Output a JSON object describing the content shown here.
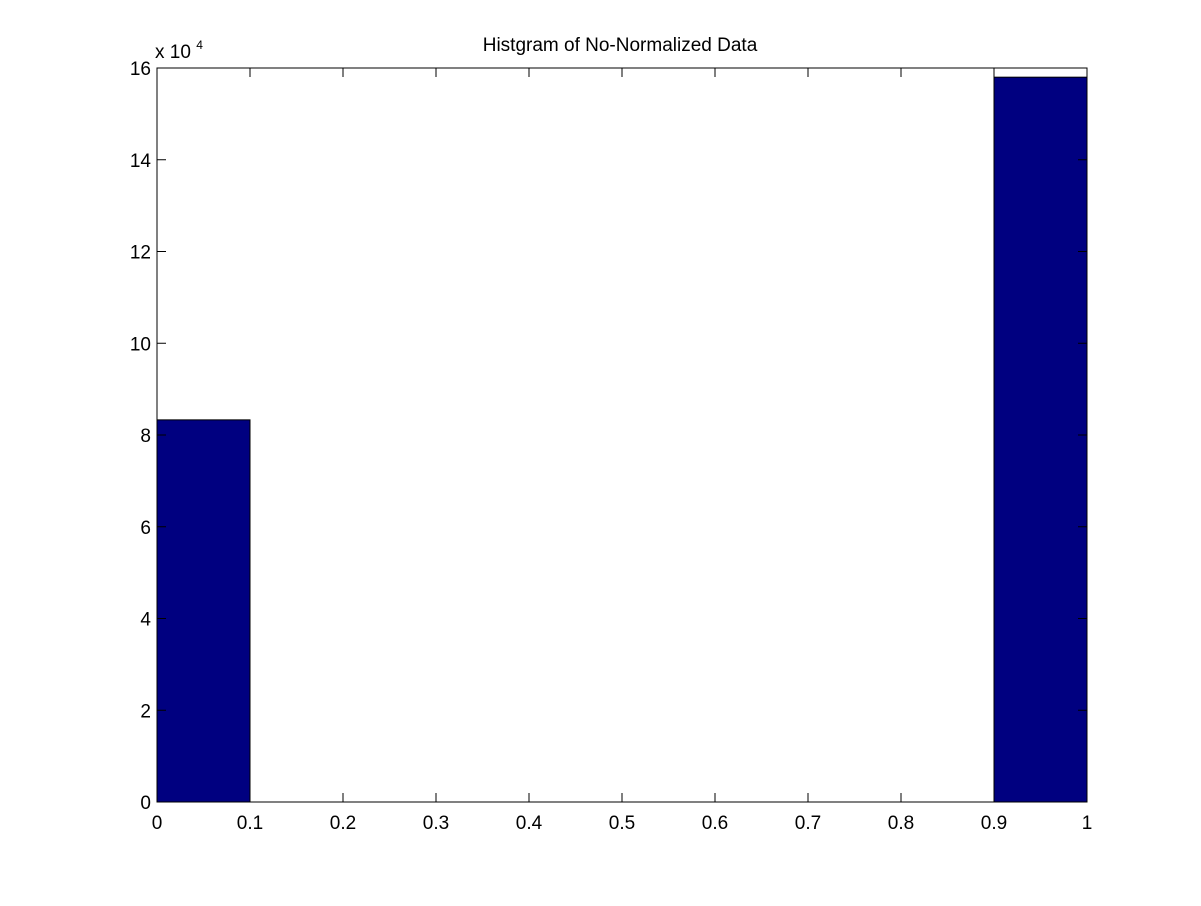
{
  "chart_data": {
    "type": "bar",
    "title": "Histgram of No-Normalized Data",
    "xlabel": "",
    "ylabel": "",
    "y_multiplier_base": "x 10",
    "y_multiplier_exponent": "4",
    "xlim": [
      0,
      1
    ],
    "ylim": [
      0,
      16
    ],
    "xticks": [
      "0",
      "0.1",
      "0.2",
      "0.3",
      "0.4",
      "0.5",
      "0.6",
      "0.7",
      "0.8",
      "0.9",
      "1"
    ],
    "yticks": [
      "0",
      "2",
      "4",
      "6",
      "8",
      "10",
      "12",
      "14",
      "16"
    ],
    "grid": false,
    "bars": [
      {
        "x_start": 0.0,
        "x_end": 0.1,
        "value": 8.33
      },
      {
        "x_start": 0.9,
        "x_end": 1.0,
        "value": 15.8
      }
    ],
    "bar_color": "#000080",
    "bar_edge_color": "#000000",
    "axes_color": "#000000",
    "background_color": "#ffffff"
  }
}
